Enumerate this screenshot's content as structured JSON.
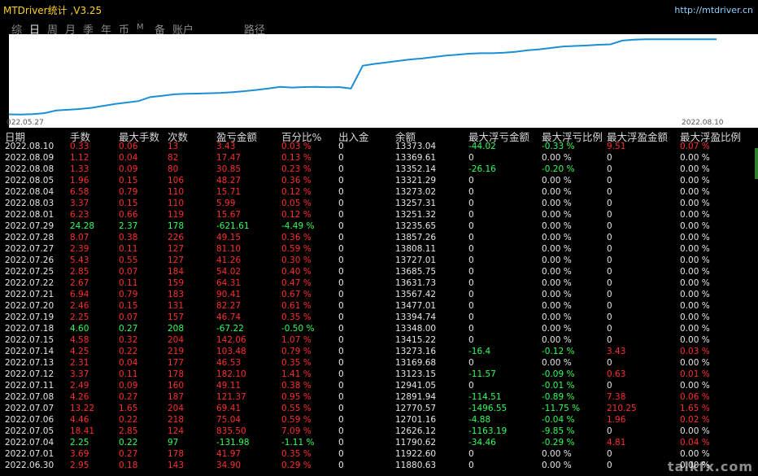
{
  "app": {
    "title": "MTDriver统计 ,V3.25",
    "url": "http://mtdriver.cn"
  },
  "tabs": [
    "综",
    "日",
    "周",
    "月",
    "季",
    "年",
    "币",
    "M",
    "备",
    "账户",
    "路径"
  ],
  "active_tab": "日",
  "chart_data": {
    "type": "line",
    "x_start_label": "022.05.27",
    "x_end_label": "2022.08.10",
    "values": [
      11825,
      11820,
      11830,
      11850,
      11905,
      11920,
      11935,
      11960,
      12000,
      12040,
      12070,
      12100,
      12185,
      12210,
      12240,
      12250,
      12255,
      12262,
      12270,
      12285,
      12305,
      12330,
      12360,
      12395,
      12380,
      12390,
      12395,
      12385,
      12390,
      12360,
      12830,
      12870,
      12900,
      12930,
      12960,
      12980,
      13010,
      13040,
      13060,
      13080,
      13090,
      13090,
      13100,
      13120,
      13150,
      13170,
      13200,
      13230,
      13240,
      13250,
      13265,
      13273,
      13350,
      13370,
      13380,
      13380,
      13380,
      13380,
      13380,
      13380,
      13380
    ],
    "ylim": [
      11750,
      13450
    ],
    "color": "#1b8fd6"
  },
  "table": {
    "headers": [
      "日期",
      "手数",
      "最大手数",
      "次数",
      "盈亏金额",
      "百分比%",
      "出入金",
      "余额",
      "最大浮亏金额",
      "最大浮亏比例",
      "最大浮盈金额",
      "最大浮盈比例"
    ],
    "rows": [
      [
        "2022.08.10",
        "0.33",
        "0.06",
        "13",
        "3.43",
        "0.03 %",
        "0",
        "13373.04",
        "-44.02",
        "-0.33 %",
        "9.51",
        "0.07 %"
      ],
      [
        "2022.08.09",
        "1.12",
        "0.04",
        "82",
        "17.47",
        "0.13 %",
        "0",
        "13369.61",
        "0",
        "0.00 %",
        "0",
        "0.00 %"
      ],
      [
        "2022.08.08",
        "1.33",
        "0.09",
        "80",
        "30.85",
        "0.23 %",
        "0",
        "13352.14",
        "-26.16",
        "-0.20 %",
        "0",
        "0.00 %"
      ],
      [
        "2022.08.05",
        "1.96",
        "0.15",
        "106",
        "48.27",
        "0.36 %",
        "0",
        "13321.29",
        "0",
        "0.00 %",
        "0",
        "0.00 %"
      ],
      [
        "2022.08.04",
        "6.58",
        "0.79",
        "110",
        "15.71",
        "0.12 %",
        "0",
        "13273.02",
        "0",
        "0.00 %",
        "0",
        "0.00 %"
      ],
      [
        "2022.08.03",
        "3.37",
        "0.15",
        "110",
        "5.99",
        "0.05 %",
        "0",
        "13257.31",
        "0",
        "0.00 %",
        "0",
        "0.00 %"
      ],
      [
        "2022.08.01",
        "6.23",
        "0.66",
        "119",
        "15.67",
        "0.12 %",
        "0",
        "13251.32",
        "0",
        "0.00 %",
        "0",
        "0.00 %"
      ],
      [
        "2022.07.29",
        "24.28",
        "2.37",
        "178",
        "-621.61",
        "-4.49 %",
        "0",
        "13235.65",
        "0",
        "0.00 %",
        "0",
        "0.00 %"
      ],
      [
        "2022.07.28",
        "8.07",
        "0.38",
        "226",
        "49.15",
        "0.36 %",
        "0",
        "13857.26",
        "0",
        "0.00 %",
        "0",
        "0.00 %"
      ],
      [
        "2022.07.27",
        "2.39",
        "0.11",
        "127",
        "81.10",
        "0.59 %",
        "0",
        "13808.11",
        "0",
        "0.00 %",
        "0",
        "0.00 %"
      ],
      [
        "2022.07.26",
        "5.43",
        "0.55",
        "127",
        "41.26",
        "0.30 %",
        "0",
        "13727.01",
        "0",
        "0.00 %",
        "0",
        "0.00 %"
      ],
      [
        "2022.07.25",
        "2.85",
        "0.07",
        "184",
        "54.02",
        "0.40 %",
        "0",
        "13685.75",
        "0",
        "0.00 %",
        "0",
        "0.00 %"
      ],
      [
        "2022.07.22",
        "2.67",
        "0.11",
        "159",
        "64.31",
        "0.47 %",
        "0",
        "13631.73",
        "0",
        "0.00 %",
        "0",
        "0.00 %"
      ],
      [
        "2022.07.21",
        "6.94",
        "0.79",
        "183",
        "90.41",
        "0.67 %",
        "0",
        "13567.42",
        "0",
        "0.00 %",
        "0",
        "0.00 %"
      ],
      [
        "2022.07.20",
        "2.46",
        "0.15",
        "131",
        "82.27",
        "0.61 %",
        "0",
        "13477.01",
        "0",
        "0.00 %",
        "0",
        "0.00 %"
      ],
      [
        "2022.07.19",
        "2.25",
        "0.07",
        "157",
        "46.74",
        "0.35 %",
        "0",
        "13394.74",
        "0",
        "0.00 %",
        "0",
        "0.00 %"
      ],
      [
        "2022.07.18",
        "4.60",
        "0.27",
        "208",
        "-67.22",
        "-0.50 %",
        "0",
        "13348.00",
        "0",
        "0.00 %",
        "0",
        "0.00 %"
      ],
      [
        "2022.07.15",
        "4.58",
        "0.32",
        "204",
        "142.06",
        "1.07 %",
        "0",
        "13415.22",
        "0",
        "0.00 %",
        "0",
        "0.00 %"
      ],
      [
        "2022.07.14",
        "4.25",
        "0.22",
        "219",
        "103.48",
        "0.79 %",
        "0",
        "13273.16",
        "-16.4",
        "-0.12 %",
        "3.43",
        "0.03 %"
      ],
      [
        "2022.07.13",
        "2.31",
        "0.04",
        "177",
        "46.53",
        "0.35 %",
        "0",
        "13169.68",
        "0",
        "0.00 %",
        "0",
        "0.00 %"
      ],
      [
        "2022.07.12",
        "3.37",
        "0.11",
        "178",
        "182.10",
        "1.41 %",
        "0",
        "13123.15",
        "-11.57",
        "-0.09 %",
        "0.63",
        "0.01 %"
      ],
      [
        "2022.07.11",
        "2.49",
        "0.09",
        "160",
        "49.11",
        "0.38 %",
        "0",
        "12941.05",
        "0",
        "-0.01 %",
        "0",
        "0.00 %"
      ],
      [
        "2022.07.08",
        "4.26",
        "0.27",
        "187",
        "121.37",
        "0.95 %",
        "0",
        "12891.94",
        "-114.51",
        "-0.89 %",
        "7.38",
        "0.06 %"
      ],
      [
        "2022.07.07",
        "13.22",
        "1.65",
        "204",
        "69.41",
        "0.55 %",
        "0",
        "12770.57",
        "-1496.55",
        "-11.75 %",
        "210.25",
        "1.65 %"
      ],
      [
        "2022.07.06",
        "4.46",
        "0.22",
        "218",
        "75.04",
        "0.59 %",
        "0",
        "12701.16",
        "-4.88",
        "-0.04 %",
        "1.96",
        "0.02 %"
      ],
      [
        "2022.07.05",
        "18.41",
        "2.85",
        "124",
        "835.50",
        "7.09 %",
        "0",
        "12626.12",
        "-1163.19",
        "-9.85 %",
        "0",
        "0.00 %"
      ],
      [
        "2022.07.04",
        "2.25",
        "0.22",
        "97",
        "-131.98",
        "-1.11 %",
        "0",
        "11790.62",
        "-34.46",
        "-0.29 %",
        "4.81",
        "0.04 %"
      ],
      [
        "2022.07.01",
        "3.69",
        "0.27",
        "178",
        "41.97",
        "0.35 %",
        "0",
        "11922.60",
        "0",
        "0.00 %",
        "0",
        "0.00 %"
      ],
      [
        "2022.06.30",
        "2.95",
        "0.18",
        "143",
        "34.90",
        "0.29 %",
        "0",
        "11880.63",
        "0",
        "0.00 %",
        "0",
        "0.00 %"
      ]
    ]
  },
  "colors": {
    "profit": "#ff2d2d",
    "loss": "#2fff5a",
    "neutral": "#e6e6e6",
    "line": "#1b8fd6"
  },
  "watermark": "talkfx.com"
}
